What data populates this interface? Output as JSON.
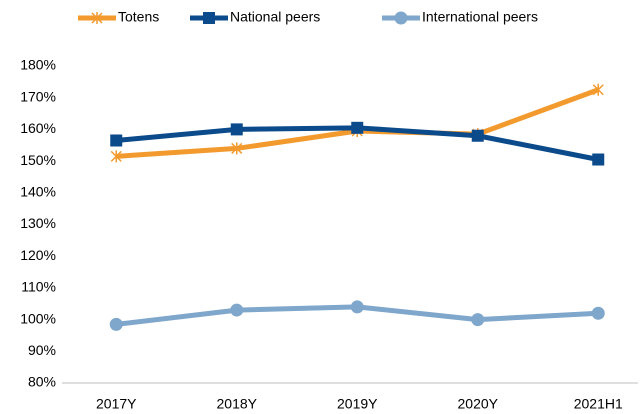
{
  "chart_data": {
    "type": "line",
    "categories": [
      "2017Y",
      "2018Y",
      "2019Y",
      "2020Y",
      "2021H1"
    ],
    "series": [
      {
        "name": "Totens",
        "color": "#f39a2e",
        "marker": "x",
        "values": [
          151.5,
          154,
          159.5,
          158.5,
          172.5
        ]
      },
      {
        "name": "National peers",
        "color": "#0b4a8b",
        "marker": "square",
        "values": [
          156.5,
          160,
          160.5,
          158,
          150.5
        ]
      },
      {
        "name": "International peers",
        "color": "#7fa6cb",
        "marker": "circle",
        "values": [
          98.5,
          103,
          104,
          100,
          102
        ]
      }
    ],
    "ylim": [
      80,
      180
    ],
    "yticks": [
      {
        "value": 80,
        "label": "80%"
      },
      {
        "value": 90,
        "label": "90%"
      },
      {
        "value": 100,
        "label": "100%"
      },
      {
        "value": 110,
        "label": "110%"
      },
      {
        "value": 120,
        "label": "120%"
      },
      {
        "value": 130,
        "label": "130%"
      },
      {
        "value": 140,
        "label": "140%"
      },
      {
        "value": 150,
        "label": "150%"
      },
      {
        "value": 160,
        "label": "160%"
      },
      {
        "value": 170,
        "label": "170%"
      },
      {
        "value": 180,
        "label": "180%"
      }
    ],
    "grid": false,
    "legend": "top"
  }
}
